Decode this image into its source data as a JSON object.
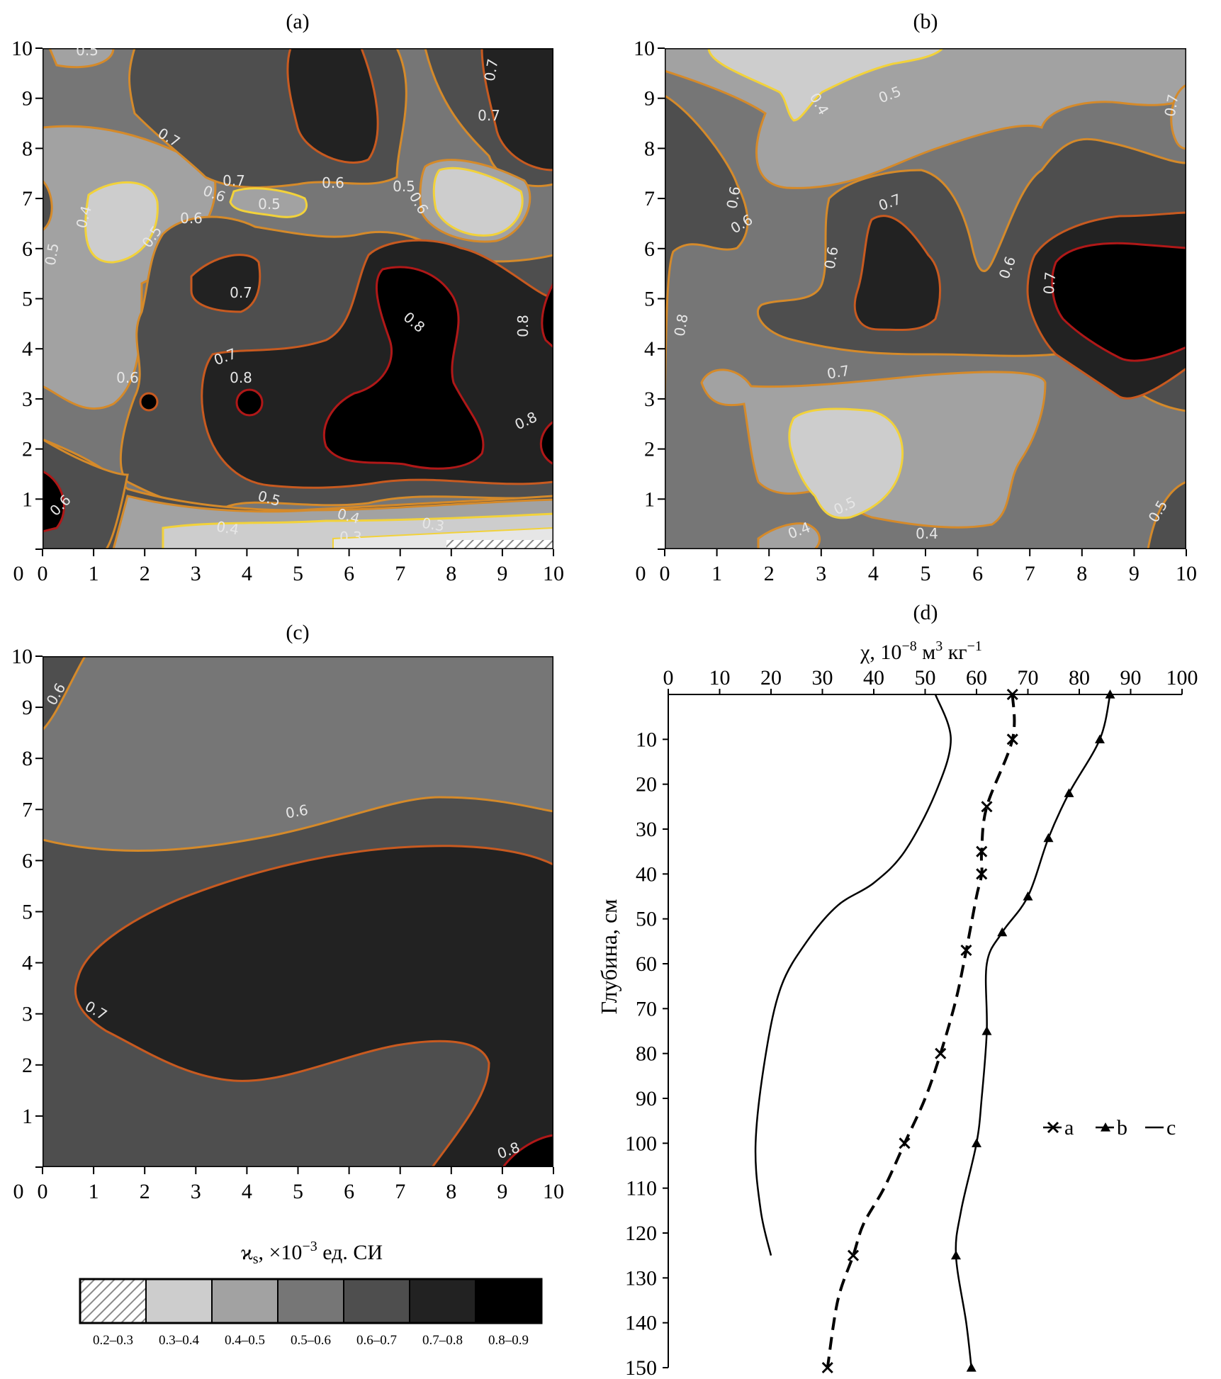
{
  "panels": {
    "a": {
      "label": "(a)"
    },
    "b": {
      "label": "(b)"
    },
    "c": {
      "label": "(c)"
    },
    "d": {
      "label": "(d)"
    }
  },
  "map_axes": {
    "xticks": [
      "0",
      "1",
      "2",
      "3",
      "4",
      "5",
      "6",
      "7",
      "8",
      "9",
      "10"
    ],
    "yticks": [
      "1",
      "2",
      "3",
      "4",
      "5",
      "6",
      "7",
      "8",
      "9",
      "10"
    ]
  },
  "contour_labels": {
    "a": [
      "0.5",
      "0.7",
      "0.6",
      "0.7",
      "0.6",
      "0.7",
      "0.5",
      "0.6",
      "0.5",
      "0.6",
      "0.4",
      "0.5",
      "0.5",
      "0.6",
      "0.7",
      "0.8",
      "0.8",
      "0.7",
      "0.8",
      "0.7",
      "0.8",
      "0.6",
      "0.5",
      "0.4",
      "0.4",
      "0.3",
      "0.3"
    ],
    "b": [
      "0.4",
      "0.5",
      "0.6",
      "0.6",
      "0.6",
      "0.7",
      "0.6",
      "0.7",
      "0.8",
      "0.7",
      "0.5",
      "0.4",
      "0.4",
      "0.5",
      "0.7"
    ],
    "c": [
      "0.6",
      "0.6",
      "0.7",
      "0.8"
    ]
  },
  "legend": {
    "title_prefix": "ϰ",
    "title_sub": "s",
    "title_mid": ", ×10",
    "title_exp": "−3",
    "title_suffix": " ед. СИ",
    "bins": [
      {
        "label": "0.2–0.3",
        "color": "hatched"
      },
      {
        "label": "0.3–0.4",
        "color": "#cdcdcd"
      },
      {
        "label": "0.4–0.5",
        "color": "#a2a2a2"
      },
      {
        "label": "0.5–0.6",
        "color": "#767676"
      },
      {
        "label": "0.6–0.7",
        "color": "#4e4e4e"
      },
      {
        "label": "0.7–0.8",
        "color": "#222222"
      },
      {
        "label": "0.8–0.9",
        "color": "#000000"
      }
    ]
  },
  "chart_data": {
    "type": "line",
    "title": "",
    "xlabel_prefix": "χ, 10",
    "xlabel_exp": "−8",
    "xlabel_mid": " м",
    "xlabel_exp2": "3",
    "xlabel_mid2": " кг",
    "xlabel_exp3": "−1",
    "ylabel": "Глубина, см",
    "xlim": [
      0,
      100
    ],
    "ylim": [
      0,
      150
    ],
    "x_axis_position": "top",
    "y_inverted": true,
    "xticks": [
      0,
      10,
      20,
      30,
      40,
      50,
      60,
      70,
      80,
      90,
      100
    ],
    "yticks": [
      10,
      20,
      30,
      40,
      50,
      60,
      70,
      80,
      90,
      100,
      110,
      120,
      130,
      140,
      150
    ],
    "legend_position": "middle-right",
    "series": [
      {
        "name": "a",
        "marker": "x",
        "line": "dashed",
        "points": [
          [
            67,
            0
          ],
          [
            67,
            10
          ],
          [
            62,
            25
          ],
          [
            61,
            35
          ],
          [
            61,
            40
          ],
          [
            60,
            45
          ],
          [
            58,
            57
          ],
          [
            56,
            68
          ],
          [
            53,
            80
          ],
          [
            50,
            90
          ],
          [
            46,
            100
          ],
          [
            42,
            110
          ],
          [
            38,
            118
          ],
          [
            36,
            125
          ],
          [
            33,
            135
          ],
          [
            31,
            150
          ]
        ]
      },
      {
        "name": "b",
        "marker": "triangle",
        "line": "solid",
        "points": [
          [
            86,
            0
          ],
          [
            84,
            10
          ],
          [
            78,
            22
          ],
          [
            74,
            32
          ],
          [
            70,
            45
          ],
          [
            65,
            53
          ],
          [
            62,
            60
          ],
          [
            62,
            75
          ],
          [
            61,
            90
          ],
          [
            60,
            100
          ],
          [
            57,
            115
          ],
          [
            56,
            125
          ],
          [
            58,
            140
          ],
          [
            59,
            150
          ]
        ]
      },
      {
        "name": "c",
        "marker": "none",
        "line": "solid",
        "points": [
          [
            52,
            0
          ],
          [
            55,
            10
          ],
          [
            52,
            22
          ],
          [
            46,
            35
          ],
          [
            40,
            42
          ],
          [
            33,
            47
          ],
          [
            27,
            55
          ],
          [
            22,
            65
          ],
          [
            19,
            80
          ],
          [
            17,
            100
          ],
          [
            18,
            115
          ],
          [
            20,
            125
          ]
        ]
      }
    ]
  }
}
